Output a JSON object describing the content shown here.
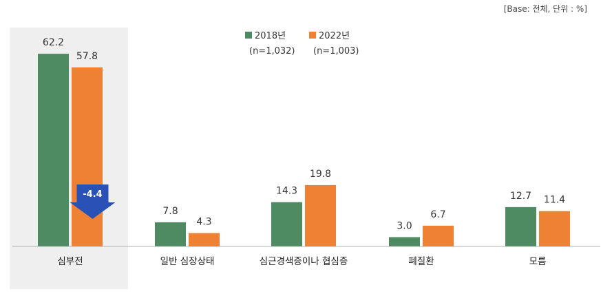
{
  "note": "[Base: 전체, 단위 : %]",
  "legend": {
    "s1_name": "2018년",
    "s1_sub": "(n=1,032)",
    "s2_name": "2022년",
    "s2_sub": "(n=1,003)"
  },
  "colors": {
    "s1": "#4e8a62",
    "s2": "#ee8133",
    "highlight_bg": "#efefef",
    "delta": "#2a52b6",
    "axis": "#b0b0b0"
  },
  "callout": {
    "text": "-4.4",
    "category_index": 0
  },
  "chart_data": {
    "type": "bar",
    "categories": [
      "심부전",
      "일반 심장상태",
      "심근경색증이나 협심증",
      "폐질환",
      "모름"
    ],
    "series": [
      {
        "name": "2018년",
        "values": [
          62.2,
          7.8,
          14.3,
          3.0,
          12.7
        ]
      },
      {
        "name": "2022년",
        "values": [
          57.8,
          4.3,
          19.8,
          6.7,
          11.4
        ]
      }
    ],
    "value_labels": [
      [
        "62.2",
        "7.8",
        "14.3",
        "3.0",
        "12.7"
      ],
      [
        "57.8",
        "4.3",
        "19.8",
        "6.7",
        "11.4"
      ]
    ],
    "ylim": [
      0,
      70
    ],
    "grid": false,
    "legend_position": "top-center",
    "highlighted_category": 0
  }
}
